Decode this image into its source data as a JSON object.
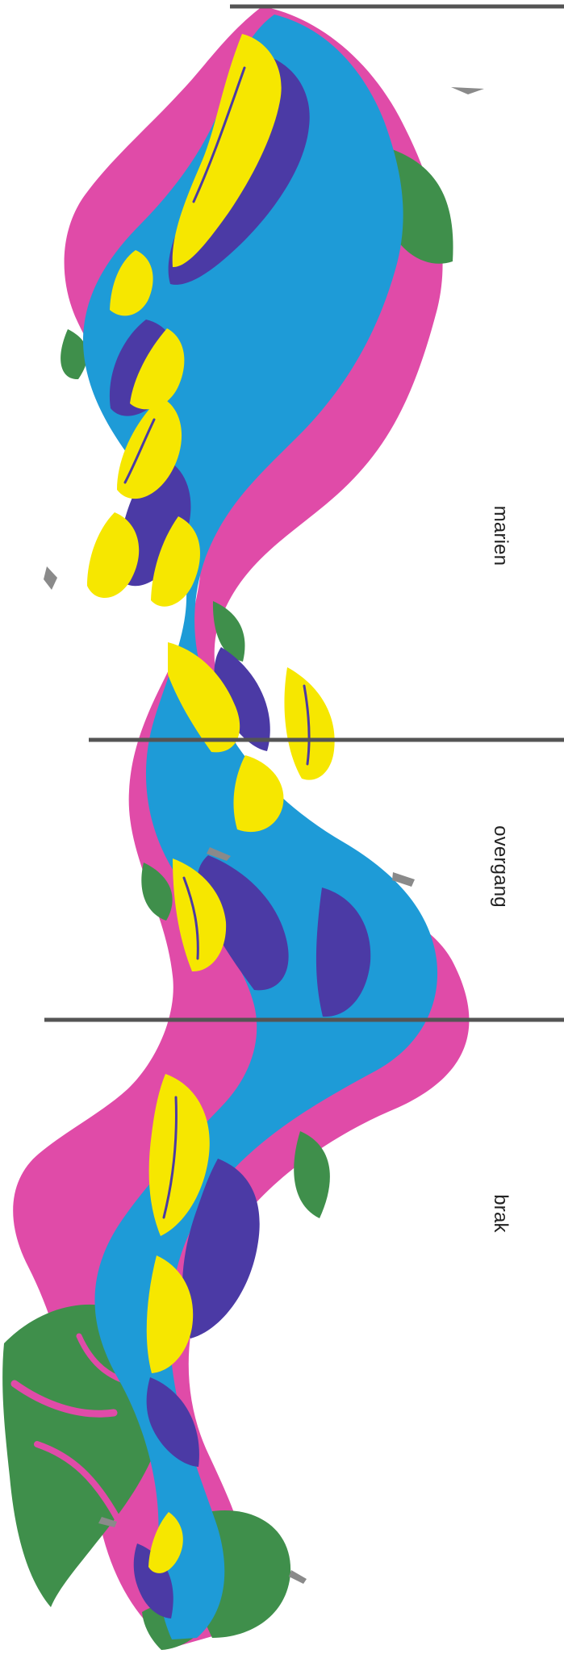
{
  "map": {
    "zones": [
      {
        "name": "marien",
        "label": "marien"
      },
      {
        "name": "overgang",
        "label": "overgang"
      },
      {
        "name": "brak",
        "label": "brak"
      }
    ],
    "colors": {
      "water": "#1E9BD7",
      "intertidal": "#4B3AA5",
      "sand": "#F6E700",
      "salt_marsh": "#E04BA8",
      "green_zone": "#3F8F4B",
      "divider": "#545454",
      "background": "#FFFFFF"
    }
  }
}
